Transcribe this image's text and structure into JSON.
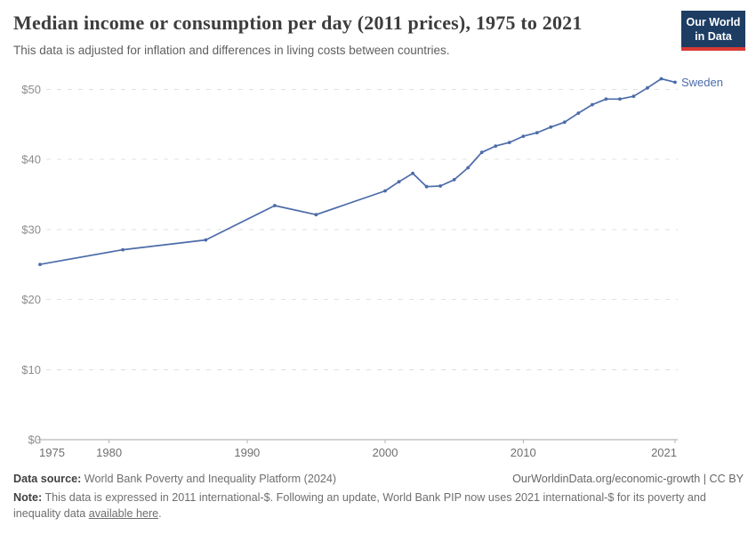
{
  "header": {
    "title": "Median income or consumption per day (2011 prices), 1975 to 2021",
    "subtitle": "This data is adjusted for inflation and differences in living costs between countries.",
    "logo": {
      "line1": "Our World",
      "line2": "in Data",
      "bg_color": "#1d3d63",
      "accent_color": "#d93a34"
    }
  },
  "chart_data": {
    "type": "line",
    "title": "Median income or consumption per day (2011 prices), 1975 to 2021",
    "xlabel": "",
    "ylabel": "",
    "xlim": [
      1975,
      2021
    ],
    "ylim": [
      0,
      55
    ],
    "x_ticks": [
      "1975",
      "1980",
      "1990",
      "2000",
      "2010",
      "2021"
    ],
    "x_tick_years": [
      1975,
      1980,
      1990,
      2000,
      2010,
      2021
    ],
    "y_ticks": [
      0,
      10,
      20,
      30,
      40,
      50
    ],
    "y_tick_labels": [
      "$0",
      "$10",
      "$20",
      "$30",
      "$40",
      "$50"
    ],
    "grid": "horizontal dashed",
    "legend_position": "end-of-line label",
    "series": [
      {
        "name": "Sweden",
        "color": "#4c6ba9",
        "x": [
          1975,
          1981,
          1987,
          1992,
          1995,
          2000,
          2001,
          2002,
          2003,
          2004,
          2005,
          2006,
          2007,
          2008,
          2009,
          2010,
          2011,
          2012,
          2013,
          2014,
          2015,
          2016,
          2017,
          2018,
          2019,
          2020,
          2021
        ],
        "values": [
          25.0,
          27.1,
          28.5,
          33.4,
          32.1,
          35.5,
          36.8,
          38.0,
          36.1,
          36.2,
          37.1,
          38.8,
          41.0,
          41.9,
          42.4,
          43.3,
          43.8,
          44.6,
          45.3,
          46.6,
          47.8,
          48.6,
          48.6,
          49.0,
          50.2,
          51.5,
          51.0
        ]
      }
    ]
  },
  "footer": {
    "datasource_label": "Data source:",
    "datasource_value": " World Bank Poverty and Inequality Platform (2024)",
    "attribution": "OurWorldinData.org/economic-growth | CC BY",
    "note_label": "Note:",
    "note_text": " This data is expressed in 2011 international-$. Following an update, World Bank PIP now uses 2021 international-$ for its poverty and inequality data ",
    "note_link": "available here",
    "note_suffix": "."
  },
  "colors": {
    "line": "#4c6ba9",
    "gridline": "#e0e0e0",
    "axis_line": "#a6a6a6",
    "tick_mark": "#b3b3b3",
    "y_label": "#8c8c8c",
    "x_label": "#6f6f6f"
  }
}
